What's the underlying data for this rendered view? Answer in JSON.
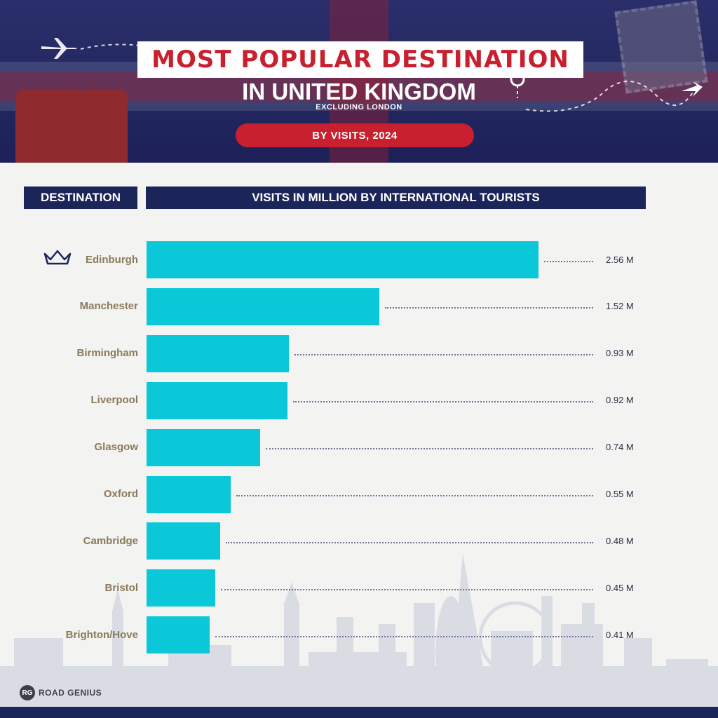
{
  "header": {
    "title": "MOST POPULAR DESTINATION",
    "subtitle": "IN UNITED KINGDOM",
    "note": "EXCLUDING LONDON",
    "period": "BY VISITS, 2024"
  },
  "columns": {
    "left": "DESTINATION",
    "right": "VISITS IN MILLION BY INTERNATIONAL TOURISTS"
  },
  "brand": {
    "badge": "RG",
    "name": "ROAD GENIUS"
  },
  "colors": {
    "bar": "#0ac8d8",
    "navy": "#1c2559",
    "red": "#c8202f",
    "label": "#8b7a5c"
  },
  "icons": {
    "top_category": "crown-icon"
  },
  "chart_data": {
    "type": "bar",
    "orientation": "horizontal",
    "title": "MOST POPULAR DESTINATION IN UNITED KINGDOM",
    "categories": [
      "Edinburgh",
      "Manchester",
      "Birmingham",
      "Liverpool",
      "Glasgow",
      "Oxford",
      "Cambridge",
      "Bristol",
      "Brighton/Hove"
    ],
    "values": [
      2.56,
      1.52,
      0.93,
      0.92,
      0.74,
      0.55,
      0.48,
      0.45,
      0.41
    ],
    "value_labels": [
      "2.56 M",
      "1.52 M",
      "0.93 M",
      "0.92 M",
      "0.74 M",
      "0.55 M",
      "0.48 M",
      "0.45 M",
      "0.41 M"
    ],
    "xlabel": "VISITS IN MILLION BY INTERNATIONAL TOURISTS",
    "ylabel": "DESTINATION",
    "xlim": [
      0,
      2.56
    ],
    "grid": false,
    "legend": "none"
  }
}
